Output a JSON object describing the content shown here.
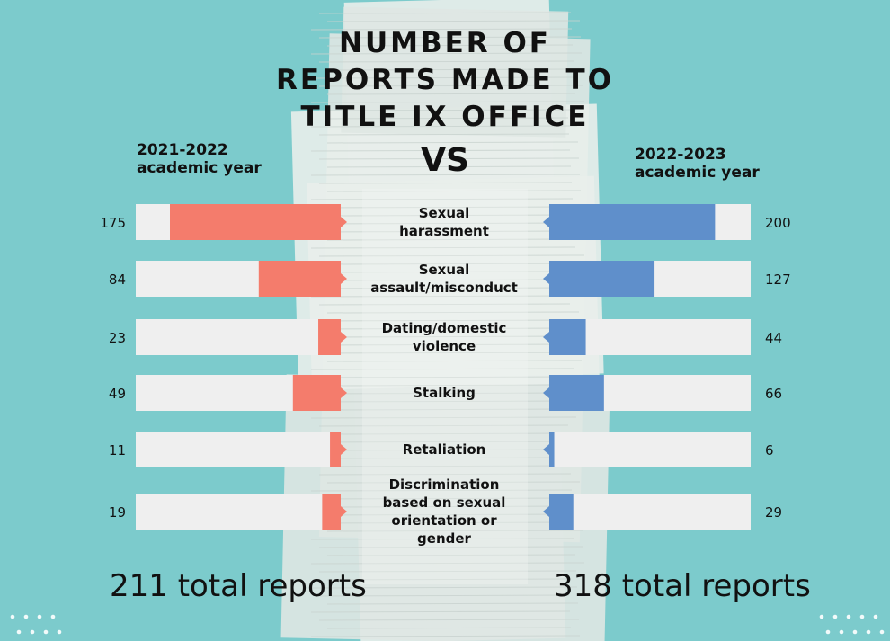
{
  "title_lines": [
    "NUMBER OF",
    "REPORTS MADE TO",
    "TITLE IX OFFICE"
  ],
  "vs_label": "VS",
  "left_year": {
    "line1": "2021-2022",
    "line2": "academic year"
  },
  "right_year": {
    "line1": "2022-2023",
    "line2": "academic year"
  },
  "left_total": "211 total reports",
  "right_total": "318 total reports",
  "colors": {
    "background": "#7ccbcc",
    "left_bar": "#f47c6c",
    "right_bar": "#5f8fcb",
    "track": "#efefef",
    "paper": "#e5ebe8"
  },
  "chart_data": {
    "type": "bar",
    "orientation": "horizontal-butterfly",
    "categories": [
      [
        "Sexual",
        "harassment"
      ],
      [
        "Sexual",
        "assault/misconduct"
      ],
      [
        "Dating/domestic",
        "violence"
      ],
      [
        "Stalking"
      ],
      [
        "Retaliation"
      ],
      [
        "Discrimination",
        "based on sexual",
        "orientation or",
        "gender"
      ]
    ],
    "series": [
      {
        "name": "2021-2022 academic year",
        "values": [
          175,
          84,
          23,
          49,
          11,
          19
        ]
      },
      {
        "name": "2022-2023 academic year",
        "values": [
          200,
          127,
          44,
          66,
          6,
          29
        ]
      }
    ],
    "title": "NUMBER OF REPORTS MADE TO TITLE IX OFFICE"
  }
}
